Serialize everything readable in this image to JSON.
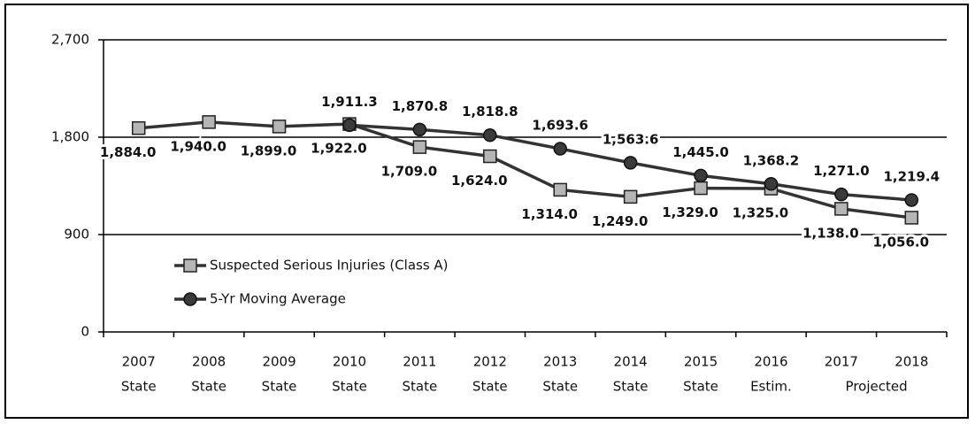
{
  "chart_data": {
    "type": "line",
    "categories": [
      "2007",
      "2008",
      "2009",
      "2010",
      "2011",
      "2012",
      "2013",
      "2014",
      "2015",
      "2016",
      "2017",
      "2018"
    ],
    "category_sublabels": [
      "State",
      "State",
      "State",
      "State",
      "State",
      "State",
      "State",
      "State",
      "State",
      "Estim.",
      "Projected",
      null
    ],
    "series": [
      {
        "name": "Suspected Serious Injuries (Class A)",
        "color": "#333333",
        "marker": "square",
        "marker_color": "#b5b5b5",
        "values": [
          1884.0,
          1940.0,
          1899.0,
          1922.0,
          1709.0,
          1624.0,
          1314.0,
          1249.0,
          1329.0,
          1325.0,
          1138.0,
          1056.0
        ],
        "value_labels": [
          "1,884.0",
          "1,940.0",
          "1,899.0",
          "1,922.0",
          "1,709.0",
          "1,624.0",
          "1,314.0",
          "1,249.0",
          "1,329.0",
          "1,325.0",
          "1,138.0",
          "1,056.0"
        ]
      },
      {
        "name": "5-Yr Moving Average",
        "color": "#333333",
        "marker": "circle",
        "marker_color": "#3a3a3a",
        "values": [
          null,
          null,
          null,
          1911.3,
          1870.8,
          1818.8,
          1693.6,
          1563.6,
          1445.0,
          1368.2,
          1271.0,
          1219.4
        ],
        "value_labels": [
          null,
          null,
          null,
          "1,911.3",
          "1,870.8",
          "1,818.8",
          "1,693.6",
          "1,563.6",
          "1,445.0",
          "1,368.2",
          "1,271.0",
          "1,219.4"
        ]
      }
    ],
    "ylim": [
      0,
      2700
    ],
    "yticks": [
      0,
      900,
      {
        "value": 1800,
        "label": "1,800"
      },
      {
        "value": 2700,
        "label": "2,700"
      }
    ],
    "grid": true,
    "legend": "lower left"
  }
}
